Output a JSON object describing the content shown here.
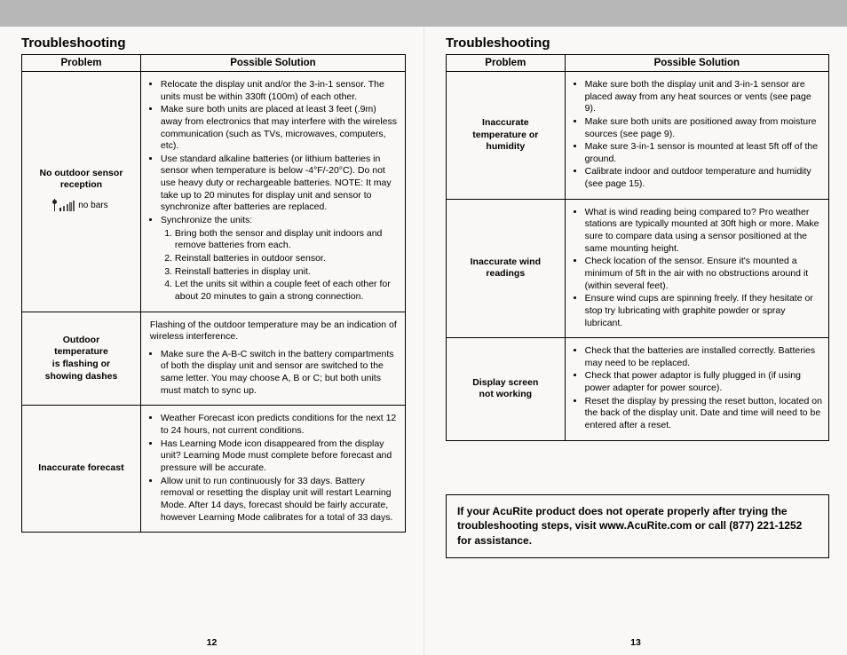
{
  "left": {
    "title": "Troubleshooting",
    "headers": {
      "problem": "Problem",
      "solution": "Possible Solution"
    },
    "rows": [
      {
        "problem_lines": [
          "No outdoor sensor",
          "reception"
        ],
        "nobars_label": "no bars",
        "bullets": [
          "Relocate the display unit and/or the 3-in-1 sensor. The units must be within 330ft (100m) of each other.",
          "Make sure both units are placed at least 3 feet (.9m) away from electronics that may interfere with the wireless communication (such as TVs, microwaves, computers, etc).",
          "Use standard alkaline batteries (or lithium batteries in sensor when temperature is below -4°F/-20°C). Do not use heavy duty or rechargeable batteries. NOTE: It may take up to 20 minutes for display unit and sensor to synchronize after batteries are replaced.",
          "Synchronize the units:"
        ],
        "numbered": [
          "Bring both the sensor and display unit indoors and remove batteries from each.",
          "Reinstall batteries in outdoor sensor.",
          "Reinstall batteries in display unit.",
          "Let the units sit within a couple feet of each other for about 20 minutes to gain a strong connection."
        ]
      },
      {
        "problem_lines": [
          "Outdoor",
          "temperature",
          "is flashing or",
          "showing dashes"
        ],
        "intro": "Flashing of the outdoor temperature may be an indication of wireless interference.",
        "bullets": [
          "Make sure the A-B-C switch in the battery compartments of both the display unit and sensor are switched to the same letter. You may choose A, B or C; but both units must match to sync up."
        ]
      },
      {
        "problem_lines": [
          "Inaccurate forecast"
        ],
        "bullets": [
          "Weather Forecast icon predicts conditions for the next 12 to 24 hours, not current conditions.",
          "Has Learning Mode icon disappeared from the display unit? Learning Mode must complete before forecast and pressure will be accurate.",
          "Allow unit to run continuously for 33 days. Battery removal or resetting the display unit will restart Learning Mode. After 14 days, forecast should be fairly accurate, however Learning Mode calibrates for a total of 33 days."
        ]
      }
    ],
    "page_num": "12"
  },
  "right": {
    "title": "Troubleshooting",
    "headers": {
      "problem": "Problem",
      "solution": "Possible Solution"
    },
    "rows": [
      {
        "problem_lines": [
          "Inaccurate",
          "temperature or",
          "humidity"
        ],
        "bullets": [
          "Make sure both the display unit and 3-in-1 sensor are placed away from any heat sources or vents (see page 9).",
          "Make sure both units are positioned away from moisture sources (see page 9).",
          "Make sure 3-in-1 sensor is mounted at least 5ft off of the ground.",
          "Calibrate indoor and outdoor temperature and humidity (see page 15)."
        ]
      },
      {
        "problem_lines": [
          "Inaccurate wind",
          "readings"
        ],
        "bullets": [
          "What is wind reading being compared to?  Pro weather stations are typically mounted at 30ft high or more. Make sure to compare data using a sensor positioned at the same mounting height.",
          "Check location of the sensor. Ensure it's mounted a minimum of 5ft in the air with no obstructions around it (within several feet).",
          "Ensure wind cups are spinning freely. If they hesitate or stop try lubricating with graphite powder or spray lubricant."
        ]
      },
      {
        "problem_lines": [
          "Display screen",
          "not working"
        ],
        "bullets": [
          "Check that the batteries are installed correctly. Batteries may need to be replaced.",
          "Check that power adaptor is fully plugged in (if using power adapter for power source).",
          "Reset the display by pressing the reset button, located on the back of the display unit. Date and time will need to be entered after a reset."
        ]
      }
    ],
    "note": "If your AcuRite product does not operate properly after trying the troubleshooting steps, visit www.AcuRite.com or call (877) 221-1252 for assistance.",
    "page_num": "13"
  }
}
